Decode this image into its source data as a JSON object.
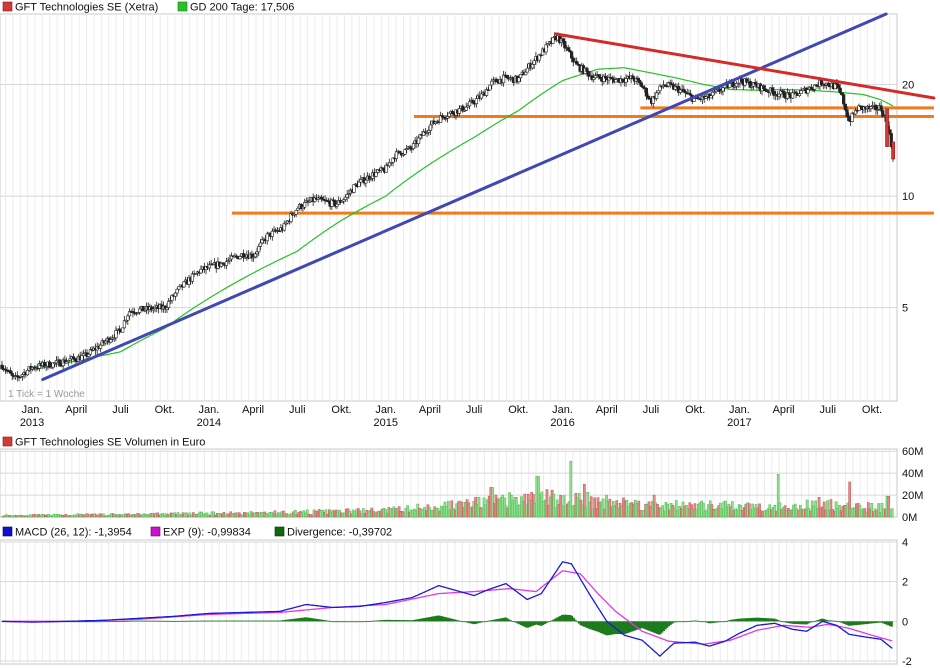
{
  "chart_data": {
    "type": "line",
    "main": {
      "legend": [
        {
          "label": "GFT Technologies SE (Xetra)",
          "color": "#d23a3a"
        },
        {
          "label": "GD 200 Tage: 17,506",
          "color": "#27c227"
        }
      ],
      "scale": "log",
      "ylim": [
        2.8,
        31
      ],
      "y_ticks": [
        {
          "value": 5,
          "label": "5"
        },
        {
          "value": 10,
          "label": "10"
        },
        {
          "value": 20,
          "label": "20"
        }
      ],
      "note": "1 Tick = 1 Woche",
      "x_ticks": [
        {
          "t": 2013.0,
          "label": "Jan.",
          "year": "2013"
        },
        {
          "t": 2013.25,
          "label": "April",
          "year": ""
        },
        {
          "t": 2013.5,
          "label": "Juli",
          "year": ""
        },
        {
          "t": 2013.75,
          "label": "Okt.",
          "year": ""
        },
        {
          "t": 2014.0,
          "label": "Jan.",
          "year": "2014"
        },
        {
          "t": 2014.25,
          "label": "April",
          "year": ""
        },
        {
          "t": 2014.5,
          "label": "Juli",
          "year": ""
        },
        {
          "t": 2014.75,
          "label": "Okt.",
          "year": ""
        },
        {
          "t": 2015.0,
          "label": "Jan.",
          "year": "2015"
        },
        {
          "t": 2015.25,
          "label": "April",
          "year": ""
        },
        {
          "t": 2015.5,
          "label": "Juli",
          "year": ""
        },
        {
          "t": 2015.75,
          "label": "Okt.",
          "year": ""
        },
        {
          "t": 2016.0,
          "label": "Jan.",
          "year": "2016"
        },
        {
          "t": 2016.25,
          "label": "April",
          "year": ""
        },
        {
          "t": 2016.5,
          "label": "Juli",
          "year": ""
        },
        {
          "t": 2016.75,
          "label": "Okt.",
          "year": ""
        },
        {
          "t": 2017.0,
          "label": "Jan.",
          "year": "2017"
        },
        {
          "t": 2017.25,
          "label": "April",
          "year": ""
        },
        {
          "t": 2017.5,
          "label": "Juli",
          "year": ""
        },
        {
          "t": 2017.75,
          "label": "Okt.",
          "year": ""
        }
      ],
      "xlim": [
        2012.83,
        2017.88
      ],
      "price_keypoints": [
        [
          2012.83,
          3.5
        ],
        [
          2012.9,
          3.2
        ],
        [
          2013.0,
          3.45
        ],
        [
          2013.15,
          3.55
        ],
        [
          2013.3,
          3.7
        ],
        [
          2013.4,
          4.0
        ],
        [
          2013.5,
          4.35
        ],
        [
          2013.55,
          4.9
        ],
        [
          2013.65,
          4.95
        ],
        [
          2013.75,
          5.0
        ],
        [
          2013.83,
          5.6
        ],
        [
          2013.95,
          6.3
        ],
        [
          2014.08,
          6.6
        ],
        [
          2014.2,
          7.0
        ],
        [
          2014.25,
          6.9
        ],
        [
          2014.33,
          7.8
        ],
        [
          2014.42,
          8.2
        ],
        [
          2014.5,
          9.3
        ],
        [
          2014.6,
          9.8
        ],
        [
          2014.72,
          9.5
        ],
        [
          2014.77,
          9.9
        ],
        [
          2014.83,
          10.7
        ],
        [
          2014.92,
          11.4
        ],
        [
          2015.0,
          11.8
        ],
        [
          2015.05,
          12.9
        ],
        [
          2015.15,
          13.5
        ],
        [
          2015.25,
          15.5
        ],
        [
          2015.33,
          16.5
        ],
        [
          2015.4,
          17.0
        ],
        [
          2015.45,
          17.3
        ],
        [
          2015.5,
          18.0
        ],
        [
          2015.55,
          18.8
        ],
        [
          2015.6,
          20.2
        ],
        [
          2015.67,
          20.8
        ],
        [
          2015.75,
          20.6
        ],
        [
          2015.85,
          23.5
        ],
        [
          2015.92,
          25.5
        ],
        [
          2015.97,
          27.0
        ],
        [
          2016.02,
          25.0
        ],
        [
          2016.08,
          22.5
        ],
        [
          2016.17,
          21.0
        ],
        [
          2016.3,
          20.6
        ],
        [
          2016.4,
          20.8
        ],
        [
          2016.45,
          19.8
        ],
        [
          2016.5,
          18.0
        ],
        [
          2016.57,
          20.0
        ],
        [
          2016.65,
          19.5
        ],
        [
          2016.75,
          18.2
        ],
        [
          2016.83,
          18.5
        ],
        [
          2016.92,
          19.7
        ],
        [
          2017.0,
          20.5
        ],
        [
          2017.1,
          19.8
        ],
        [
          2017.2,
          19.0
        ],
        [
          2017.3,
          18.6
        ],
        [
          2017.4,
          19.6
        ],
        [
          2017.47,
          20.3
        ],
        [
          2017.55,
          19.7
        ],
        [
          2017.58,
          18.5
        ],
        [
          2017.62,
          15.9
        ],
        [
          2017.67,
          17.3
        ],
        [
          2017.75,
          17.2
        ],
        [
          2017.8,
          17.3
        ],
        [
          2017.84,
          15.4
        ],
        [
          2017.86,
          13.6
        ],
        [
          2017.87,
          12.7
        ]
      ],
      "gd200_keypoints": [
        [
          2013.0,
          3.45
        ],
        [
          2013.2,
          3.55
        ],
        [
          2013.5,
          3.8
        ],
        [
          2013.75,
          4.4
        ],
        [
          2014.0,
          5.3
        ],
        [
          2014.25,
          6.2
        ],
        [
          2014.5,
          7.1
        ],
        [
          2014.75,
          8.6
        ],
        [
          2015.0,
          10.0
        ],
        [
          2015.25,
          12.2
        ],
        [
          2015.5,
          14.4
        ],
        [
          2015.75,
          17.0
        ],
        [
          2016.0,
          20.5
        ],
        [
          2016.2,
          22.0
        ],
        [
          2016.35,
          22.2
        ],
        [
          2016.5,
          21.5
        ],
        [
          2016.65,
          20.8
        ],
        [
          2016.8,
          20.0
        ],
        [
          2016.95,
          19.4
        ],
        [
          2017.1,
          19.3
        ],
        [
          2017.25,
          19.4
        ],
        [
          2017.4,
          19.3
        ],
        [
          2017.55,
          19.1
        ],
        [
          2017.7,
          18.8
        ],
        [
          2017.8,
          18.2
        ],
        [
          2017.87,
          17.5
        ]
      ],
      "trendlines": [
        {
          "name": "uptrend",
          "color": "#3f48b5",
          "from": [
            2013.06,
            3.2
          ],
          "to": [
            2017.83,
            31.0
          ]
        },
        {
          "name": "downtrend",
          "color": "#d42a2a",
          "from": [
            2015.96,
            27.4
          ],
          "to": [
            2018.1,
            18.4
          ]
        }
      ],
      "support_levels": [
        {
          "value": 9.0,
          "from": 2014.13,
          "to": 2018.1
        },
        {
          "value": 16.4,
          "from": 2015.16,
          "to": 2018.1
        },
        {
          "value": 17.3,
          "from": 2016.44,
          "to": 2018.1
        }
      ]
    },
    "volume": {
      "title": "GFT Technologies SE Volumen in Euro",
      "y_ticks": [
        {
          "value": 0,
          "label": "0M"
        },
        {
          "value": 20,
          "label": "20M"
        },
        {
          "value": 40,
          "label": "40M"
        },
        {
          "value": 60,
          "label": "60M"
        }
      ],
      "ylim": [
        0,
        62
      ],
      "unit": "M EUR",
      "keypoints": [
        [
          2013.0,
          1.5
        ],
        [
          2013.5,
          2.2
        ],
        [
          2014.0,
          3.0
        ],
        [
          2014.5,
          4.0
        ],
        [
          2015.0,
          5.5
        ],
        [
          2015.3,
          9.0
        ],
        [
          2015.6,
          13.0
        ],
        [
          2015.9,
          16.0
        ],
        [
          2016.1,
          15.0
        ],
        [
          2016.5,
          10.0
        ],
        [
          2017.0,
          9.0
        ],
        [
          2017.5,
          10.0
        ],
        [
          2017.87,
          8.0
        ]
      ],
      "spikes": [
        [
          2015.6,
          27.0
        ],
        [
          2015.86,
          37.0
        ],
        [
          2016.05,
          51.0
        ],
        [
          2016.12,
          30.0
        ],
        [
          2016.25,
          20.0
        ],
        [
          2016.52,
          20.0
        ],
        [
          2017.22,
          39.0
        ],
        [
          2017.45,
          18.0
        ],
        [
          2017.52,
          16.0
        ],
        [
          2017.62,
          32.0
        ],
        [
          2017.84,
          19.0
        ],
        [
          2017.5,
          15.0
        ]
      ]
    },
    "macd": {
      "legend": [
        {
          "label": "MACD (26, 12): -1,3954",
          "color": "#1111cc"
        },
        {
          "label": "EXP (9): -0,99834",
          "color": "#cc11cc"
        },
        {
          "label": "Divergence: -0,39702",
          "color": "#116611"
        }
      ],
      "y_ticks": [
        {
          "value": -2,
          "label": "-2"
        },
        {
          "value": 0,
          "label": "0"
        },
        {
          "value": 2,
          "label": "2"
        },
        {
          "value": 4,
          "label": "4"
        }
      ],
      "ylim": [
        -2.15,
        4.1
      ],
      "macd_keypoints": [
        [
          2012.83,
          0.0
        ],
        [
          2013.0,
          -0.04
        ],
        [
          2013.2,
          0.0
        ],
        [
          2013.4,
          0.05
        ],
        [
          2013.6,
          0.15
        ],
        [
          2013.8,
          0.25
        ],
        [
          2014.0,
          0.4
        ],
        [
          2014.2,
          0.45
        ],
        [
          2014.4,
          0.5
        ],
        [
          2014.55,
          0.85
        ],
        [
          2014.7,
          0.7
        ],
        [
          2014.85,
          0.75
        ],
        [
          2015.0,
          0.95
        ],
        [
          2015.15,
          1.2
        ],
        [
          2015.3,
          1.8
        ],
        [
          2015.4,
          1.55
        ],
        [
          2015.5,
          1.3
        ],
        [
          2015.58,
          1.6
        ],
        [
          2015.68,
          1.9
        ],
        [
          2015.8,
          1.1
        ],
        [
          2015.88,
          1.4
        ],
        [
          2015.97,
          2.6
        ],
        [
          2016.0,
          3.0
        ],
        [
          2016.05,
          2.9
        ],
        [
          2016.15,
          1.4
        ],
        [
          2016.25,
          0.0
        ],
        [
          2016.35,
          -0.7
        ],
        [
          2016.45,
          -0.95
        ],
        [
          2016.55,
          -1.75
        ],
        [
          2016.63,
          -1.1
        ],
        [
          2016.75,
          -1.05
        ],
        [
          2016.83,
          -1.25
        ],
        [
          2016.92,
          -1.0
        ],
        [
          2017.0,
          -0.6
        ],
        [
          2017.1,
          -0.2
        ],
        [
          2017.2,
          -0.1
        ],
        [
          2017.3,
          -0.4
        ],
        [
          2017.38,
          -0.5
        ],
        [
          2017.47,
          0.0
        ],
        [
          2017.55,
          -0.2
        ],
        [
          2017.62,
          -0.65
        ],
        [
          2017.72,
          -0.8
        ],
        [
          2017.8,
          -0.9
        ],
        [
          2017.87,
          -1.4
        ]
      ],
      "exp_keypoints": [
        [
          2012.83,
          0.0
        ],
        [
          2013.2,
          0.0
        ],
        [
          2013.6,
          0.1
        ],
        [
          2014.0,
          0.35
        ],
        [
          2014.4,
          0.45
        ],
        [
          2014.7,
          0.7
        ],
        [
          2015.0,
          0.85
        ],
        [
          2015.3,
          1.4
        ],
        [
          2015.5,
          1.5
        ],
        [
          2015.7,
          1.65
        ],
        [
          2015.85,
          1.5
        ],
        [
          2016.0,
          2.55
        ],
        [
          2016.1,
          2.4
        ],
        [
          2016.2,
          1.4
        ],
        [
          2016.3,
          0.5
        ],
        [
          2016.45,
          -0.5
        ],
        [
          2016.6,
          -1.0
        ],
        [
          2016.8,
          -1.15
        ],
        [
          2016.95,
          -0.95
        ],
        [
          2017.1,
          -0.45
        ],
        [
          2017.25,
          -0.2
        ],
        [
          2017.4,
          -0.3
        ],
        [
          2017.5,
          -0.15
        ],
        [
          2017.62,
          -0.35
        ],
        [
          2017.75,
          -0.7
        ],
        [
          2017.87,
          -1.0
        ]
      ]
    }
  }
}
